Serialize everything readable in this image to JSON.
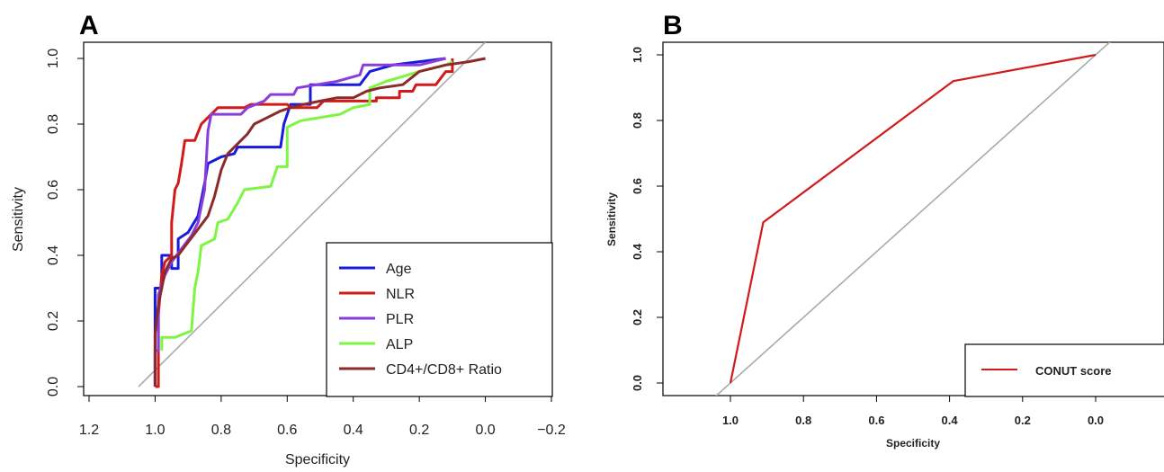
{
  "chart_data": [
    {
      "panel": "A",
      "type": "line",
      "xlabel": "Specificity",
      "ylabel": "Sensitivity",
      "xlim": [
        1.2,
        -0.2
      ],
      "ylim": [
        0,
        1
      ],
      "x_ticks": [
        "1.2",
        "1.0",
        "0.8",
        "0.6",
        "0.4",
        "0.2",
        "0.0",
        "−0.2"
      ],
      "x_tick_values": [
        1.2,
        1.0,
        0.8,
        0.6,
        0.4,
        0.2,
        0.0,
        -0.2
      ],
      "y_ticks": [
        "0.0",
        "0.2",
        "0.4",
        "0.6",
        "0.8",
        "1.0"
      ],
      "y_tick_values": [
        0,
        0.2,
        0.4,
        0.6,
        0.8,
        1.0
      ],
      "legend_position": "bottom-right",
      "reference_line": {
        "color": "#aaaaaa",
        "points": [
          [
            1.05,
            0.0
          ],
          [
            0.0,
            1.05
          ]
        ]
      },
      "series": [
        {
          "name": "Age",
          "color": "#1a1adb",
          "points": [
            [
              1.0,
              0.0
            ],
            [
              1.0,
              0.3
            ],
            [
              0.98,
              0.3
            ],
            [
              0.98,
              0.4
            ],
            [
              0.95,
              0.4
            ],
            [
              0.95,
              0.36
            ],
            [
              0.93,
              0.36
            ],
            [
              0.93,
              0.45
            ],
            [
              0.9,
              0.47
            ],
            [
              0.87,
              0.52
            ],
            [
              0.85,
              0.62
            ],
            [
              0.84,
              0.68
            ],
            [
              0.8,
              0.7
            ],
            [
              0.76,
              0.71
            ],
            [
              0.75,
              0.73
            ],
            [
              0.65,
              0.73
            ],
            [
              0.65,
              0.73
            ],
            [
              0.62,
              0.73
            ],
            [
              0.61,
              0.8
            ],
            [
              0.59,
              0.86
            ],
            [
              0.53,
              0.86
            ],
            [
              0.53,
              0.92
            ],
            [
              0.38,
              0.92
            ],
            [
              0.35,
              0.96
            ],
            [
              0.28,
              0.98
            ],
            [
              0.12,
              1.0
            ]
          ]
        },
        {
          "name": "NLR",
          "color": "#d11a1a",
          "points": [
            [
              1.0,
              0.0
            ],
            [
              0.99,
              0.0
            ],
            [
              0.99,
              0.22
            ],
            [
              0.98,
              0.34
            ],
            [
              0.97,
              0.38
            ],
            [
              0.95,
              0.4
            ],
            [
              0.95,
              0.5
            ],
            [
              0.94,
              0.6
            ],
            [
              0.93,
              0.62
            ],
            [
              0.92,
              0.68
            ],
            [
              0.91,
              0.75
            ],
            [
              0.88,
              0.75
            ],
            [
              0.86,
              0.8
            ],
            [
              0.84,
              0.82
            ],
            [
              0.81,
              0.85
            ],
            [
              0.73,
              0.85
            ],
            [
              0.71,
              0.86
            ],
            [
              0.6,
              0.86
            ],
            [
              0.59,
              0.85
            ],
            [
              0.51,
              0.85
            ],
            [
              0.49,
              0.87
            ],
            [
              0.33,
              0.87
            ],
            [
              0.33,
              0.88
            ],
            [
              0.26,
              0.88
            ],
            [
              0.26,
              0.9
            ],
            [
              0.22,
              0.9
            ],
            [
              0.21,
              0.92
            ],
            [
              0.15,
              0.92
            ],
            [
              0.12,
              0.96
            ],
            [
              0.1,
              0.96
            ],
            [
              0.1,
              1.0
            ]
          ]
        },
        {
          "name": "PLR",
          "color": "#8a3ddb",
          "points": [
            [
              1.0,
              0.0
            ],
            [
              1.0,
              0.11
            ],
            [
              0.99,
              0.11
            ],
            [
              0.99,
              0.28
            ],
            [
              0.97,
              0.34
            ],
            [
              0.95,
              0.38
            ],
            [
              0.92,
              0.42
            ],
            [
              0.89,
              0.46
            ],
            [
              0.87,
              0.5
            ],
            [
              0.85,
              0.6
            ],
            [
              0.84,
              0.78
            ],
            [
              0.83,
              0.83
            ],
            [
              0.74,
              0.83
            ],
            [
              0.72,
              0.85
            ],
            [
              0.67,
              0.87
            ],
            [
              0.65,
              0.89
            ],
            [
              0.58,
              0.89
            ],
            [
              0.57,
              0.91
            ],
            [
              0.45,
              0.93
            ],
            [
              0.38,
              0.95
            ],
            [
              0.37,
              0.98
            ],
            [
              0.2,
              0.98
            ],
            [
              0.12,
              1.0
            ]
          ]
        },
        {
          "name": "ALP",
          "color": "#7ef542",
          "points": [
            [
              0.98,
              0.11
            ],
            [
              0.98,
              0.15
            ],
            [
              0.94,
              0.15
            ],
            [
              0.89,
              0.17
            ],
            [
              0.88,
              0.3
            ],
            [
              0.87,
              0.35
            ],
            [
              0.86,
              0.43
            ],
            [
              0.82,
              0.45
            ],
            [
              0.81,
              0.5
            ],
            [
              0.78,
              0.51
            ],
            [
              0.75,
              0.56
            ],
            [
              0.73,
              0.6
            ],
            [
              0.65,
              0.61
            ],
            [
              0.63,
              0.67
            ],
            [
              0.6,
              0.67
            ],
            [
              0.6,
              0.79
            ],
            [
              0.56,
              0.81
            ],
            [
              0.44,
              0.83
            ],
            [
              0.4,
              0.85
            ],
            [
              0.35,
              0.86
            ],
            [
              0.35,
              0.91
            ],
            [
              0.3,
              0.93
            ],
            [
              0.2,
              0.96
            ],
            [
              0.12,
              0.98
            ],
            [
              0.1,
              0.99
            ]
          ]
        },
        {
          "name": "CD4+/CD8+ Ratio",
          "color": "#8b2a2a",
          "points": [
            [
              1.0,
              0.0
            ],
            [
              1.0,
              0.16
            ],
            [
              0.99,
              0.25
            ],
            [
              0.98,
              0.3
            ],
            [
              0.97,
              0.35
            ],
            [
              0.95,
              0.39
            ],
            [
              0.93,
              0.4
            ],
            [
              0.9,
              0.44
            ],
            [
              0.87,
              0.48
            ],
            [
              0.84,
              0.52
            ],
            [
              0.82,
              0.58
            ],
            [
              0.8,
              0.66
            ],
            [
              0.78,
              0.71
            ],
            [
              0.75,
              0.74
            ],
            [
              0.72,
              0.77
            ],
            [
              0.7,
              0.8
            ],
            [
              0.66,
              0.82
            ],
            [
              0.62,
              0.84
            ],
            [
              0.59,
              0.85
            ],
            [
              0.55,
              0.86
            ],
            [
              0.5,
              0.87
            ],
            [
              0.45,
              0.88
            ],
            [
              0.4,
              0.88
            ],
            [
              0.36,
              0.9
            ],
            [
              0.32,
              0.91
            ],
            [
              0.25,
              0.92
            ],
            [
              0.2,
              0.96
            ],
            [
              0.12,
              0.98
            ],
            [
              0.05,
              0.99
            ],
            [
              0.0,
              1.0
            ]
          ]
        }
      ]
    },
    {
      "panel": "B",
      "type": "line",
      "xlabel": "Specificity",
      "ylabel": "Sensitivity",
      "xlim": [
        1.3,
        -0.3
      ],
      "ylim": [
        0,
        1
      ],
      "x_ticks": [
        "1.0",
        "0.8",
        "0.6",
        "0.4",
        "0.2",
        "0.0"
      ],
      "x_tick_values": [
        1.0,
        0.8,
        0.6,
        0.4,
        0.2,
        0.0
      ],
      "y_ticks": [
        "0.0",
        "0.2",
        "0.4",
        "0.6",
        "0.8",
        "1.0"
      ],
      "y_tick_values": [
        0,
        0.2,
        0.4,
        0.6,
        0.8,
        1.0
      ],
      "legend_position": "bottom-right",
      "reference_line": {
        "color": "#aaaaaa",
        "points": [
          [
            1.04,
            -0.04
          ],
          [
            -0.04,
            1.04
          ]
        ]
      },
      "series": [
        {
          "name": "CONUT score",
          "color": "#d11a1a",
          "points": [
            [
              1.0,
              0.0
            ],
            [
              0.91,
              0.49
            ],
            [
              0.39,
              0.92
            ],
            [
              0.0,
              1.0
            ]
          ]
        }
      ]
    }
  ]
}
